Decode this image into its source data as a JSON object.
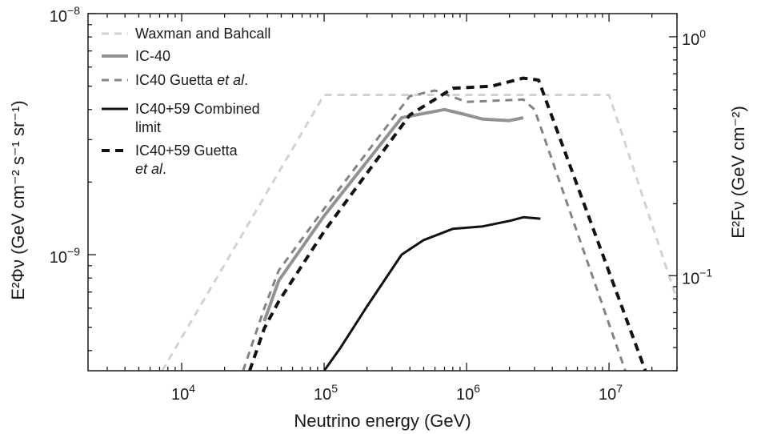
{
  "chart_data": {
    "type": "line",
    "xlabel": "Neutrino energy (GeV)",
    "ylabel_left": "E²Φν (GeV cm⁻² s⁻¹ sr⁻¹)",
    "ylabel_right": "E²Fν (GeV cm⁻²)",
    "x_scale": "log",
    "y_scale": "log",
    "xlim": [
      2200,
      30000000
    ],
    "ylim": [
      3.3e-10,
      1e-08
    ],
    "ylim_right": [
      0.04,
      1.25
    ],
    "x_ticks": [
      {
        "value": 10000,
        "label": "10",
        "exp": "4"
      },
      {
        "value": 100000,
        "label": "10",
        "exp": "5"
      },
      {
        "value": 1000000,
        "label": "10",
        "exp": "6"
      },
      {
        "value": 10000000,
        "label": "10",
        "exp": "7"
      }
    ],
    "y_ticks_left": [
      {
        "value": 1e-08,
        "label": "10",
        "exp": "−8"
      },
      {
        "value": 1e-09,
        "label": "10",
        "exp": "−9"
      }
    ],
    "y_ticks_right": [
      {
        "value": 1.0,
        "label": "10",
        "exp": "0"
      },
      {
        "value": 0.1,
        "label": "10",
        "exp": "−1"
      }
    ],
    "legend_position": "top-left",
    "series": [
      {
        "name": "Waxman and Bahcall",
        "color": "#d2d2d2",
        "dash": "dashed",
        "width": 3,
        "x": [
          7300,
          100000,
          1000000,
          10000000,
          30000000
        ],
        "y": [
          3.3e-10,
          4.6e-09,
          4.6e-09,
          4.6e-09,
          6.5e-10
        ]
      },
      {
        "name": "IC-40",
        "color": "#929292",
        "dash": "solid",
        "width": 4,
        "x": [
          38000,
          48000,
          100000,
          350000,
          700000,
          1000000,
          1300000,
          2000000,
          2500000
        ],
        "y": [
          5.3e-10,
          7.8e-10,
          1.45e-09,
          3.7e-09,
          4e-09,
          3.8e-09,
          3.65e-09,
          3.6e-09,
          3.7e-09
        ]
      },
      {
        "name": "IC40 Guetta et al.",
        "color": "#838383",
        "dash": "dashed",
        "width": 3,
        "x": [
          27000,
          38000,
          48000,
          100000,
          400000,
          600000,
          1000000,
          2500000,
          3000000,
          13000000
        ],
        "y": [
          3.3e-10,
          6e-10,
          8.6e-10,
          1.55e-09,
          4.55e-09,
          4.8e-09,
          4.3e-09,
          4.4e-09,
          4e-09,
          3.3e-10
        ]
      },
      {
        "name": "IC40+59 Combined limit",
        "color": "#111111",
        "dash": "solid",
        "width": 3,
        "x": [
          100000,
          130000,
          200000,
          350000,
          500000,
          800000,
          1300000,
          2000000,
          2500000,
          3300000
        ],
        "y": [
          3.3e-10,
          4.1e-10,
          6.1e-10,
          1e-09,
          1.15e-09,
          1.28e-09,
          1.31e-09,
          1.38e-09,
          1.43e-09,
          1.41e-09
        ]
      },
      {
        "name": "IC40+59 Guetta et al.",
        "color": "#111111",
        "dash": "dashed",
        "width": 4,
        "x": [
          30000,
          38000,
          48000,
          100000,
          400000,
          800000,
          1500000,
          2500000,
          3200000,
          18000000
        ],
        "y": [
          3.3e-10,
          4.95e-10,
          6.4e-10,
          1.25e-09,
          3.8e-09,
          4.9e-09,
          5e-09,
          5.4e-09,
          5.3e-09,
          3.3e-10
        ]
      }
    ],
    "legend": [
      {
        "series": 0,
        "lines": [
          "Waxman and Bahcall"
        ]
      },
      {
        "series": 1,
        "lines": [
          "IC-40"
        ]
      },
      {
        "series": 2,
        "lines": [
          "IC40 Guetta et al."
        ]
      },
      {
        "series": 3,
        "lines": [
          "IC40+59 Combined",
          "limit"
        ]
      },
      {
        "series": 4,
        "lines": [
          "IC40+59 Guetta",
          "et al."
        ]
      }
    ]
  }
}
